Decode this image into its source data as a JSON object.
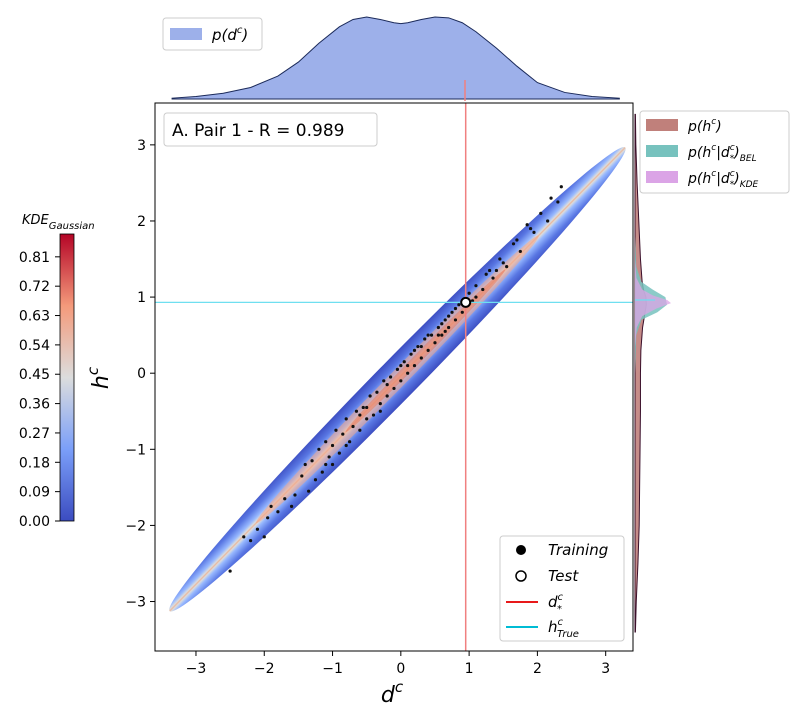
{
  "chart_data": {
    "type": "scatter",
    "title": "A. Pair 1 - R = 0.989",
    "correlation_R": 0.989,
    "xlabel": "d",
    "xlabel_sup": "c",
    "ylabel": "h",
    "ylabel_sup": "c",
    "xlim": [
      -3.6,
      3.4
    ],
    "ylim": [
      -3.65,
      3.55
    ],
    "xticks": [
      -3,
      -2,
      -1,
      0,
      1,
      2,
      3
    ],
    "yticks": [
      -3,
      -2,
      -1,
      0,
      1,
      2,
      3
    ],
    "grid": false,
    "colorbar": {
      "label": "KDE",
      "label_sub": "Gaussian",
      "colormap": "coolwarm",
      "ticks": [
        "0.00",
        "0.09",
        "0.18",
        "0.27",
        "0.36",
        "0.45",
        "0.54",
        "0.63",
        "0.72",
        "0.81"
      ],
      "max": 0.88
    },
    "test_point": {
      "x": 0.95,
      "y": 0.93
    },
    "d_star": 0.95,
    "h_true": 0.93,
    "kde_ellipse": {
      "center": [
        -0.05,
        -0.08
      ],
      "semi_major": 4.76,
      "semi_minor": 0.19,
      "angle_deg": 45.5
    },
    "legend_main": {
      "placement": "lower right",
      "items": [
        {
          "name": "Training",
          "marker": "filled-circle"
        },
        {
          "name": "Test",
          "marker": "open-circle"
        },
        {
          "name": "d",
          "sup": "c",
          "sub": "*",
          "color": "#e8191a",
          "marker": "line"
        },
        {
          "name": "h",
          "sup": "c",
          "sub": "True",
          "color": "#00bcd4",
          "marker": "line"
        }
      ]
    },
    "legend_top": {
      "placement": "upper left",
      "items": [
        {
          "name": "p(d",
          "sup": "c",
          "tail": ")",
          "color": "#9db0ea"
        }
      ]
    },
    "legend_right": {
      "placement": "upper right",
      "items": [
        {
          "name": "p(h",
          "sup": "c",
          "tail": ")",
          "color": "#c0807b"
        },
        {
          "name": "p(h",
          "sup": "c",
          "mid": "|d",
          "sub2": "*",
          "sup2": "c",
          "tail": ")",
          "sub": "BEL",
          "color": "#77c2be"
        },
        {
          "name": "p(h",
          "sup": "c",
          "mid": "|d",
          "sub2": "*",
          "sup2": "c",
          "tail": ")",
          "sub": "KDE",
          "color": "#dba4e6"
        }
      ]
    },
    "marginal_top": {
      "name": "p(d^c)",
      "color": "#9db0ea",
      "x": [
        -3.35,
        -3.0,
        -2.6,
        -2.2,
        -1.8,
        -1.5,
        -1.2,
        -0.9,
        -0.7,
        -0.5,
        -0.3,
        -0.1,
        0.0,
        0.1,
        0.3,
        0.5,
        0.7,
        0.9,
        1.1,
        1.4,
        1.7,
        2.0,
        2.4,
        2.8,
        3.2
      ],
      "density": [
        0.01,
        0.03,
        0.07,
        0.14,
        0.28,
        0.45,
        0.68,
        0.88,
        0.97,
        1.0,
        0.97,
        0.93,
        0.92,
        0.93,
        0.97,
        1.0,
        0.99,
        0.93,
        0.82,
        0.62,
        0.4,
        0.2,
        0.08,
        0.03,
        0.01
      ]
    },
    "marginal_right_prior": {
      "name": "p(h^c)",
      "color": "#c0807b",
      "y": [
        -3.4,
        -3.0,
        -2.5,
        -2.0,
        -1.5,
        -1.0,
        -0.5,
        0.0,
        0.3,
        0.6,
        0.8,
        0.9,
        1.0,
        1.1,
        1.2,
        1.5,
        2.0,
        2.5,
        3.0,
        3.4
      ],
      "density": [
        0.01,
        0.03,
        0.07,
        0.1,
        0.11,
        0.12,
        0.13,
        0.13,
        0.14,
        0.18,
        0.24,
        0.27,
        0.26,
        0.2,
        0.17,
        0.13,
        0.09,
        0.05,
        0.02,
        0.01
      ]
    },
    "marginal_right_bel": {
      "name": "p(h^c|d*^c)_BEL",
      "color": "#77c2be",
      "y": [
        0.0,
        0.5,
        0.7,
        0.8,
        0.9,
        1.0,
        1.1,
        1.2,
        1.4,
        1.8
      ],
      "density": [
        0.0,
        0.04,
        0.2,
        0.7,
        1.0,
        0.95,
        0.55,
        0.2,
        0.04,
        0.0
      ]
    },
    "marginal_right_kde": {
      "name": "p(h^c|d*^c)_KDE",
      "color": "#dba4e6",
      "y": [
        0.35,
        0.6,
        0.75,
        0.85,
        0.92,
        0.96,
        1.02,
        1.1,
        1.25,
        1.5
      ],
      "density": [
        0.0,
        0.05,
        0.2,
        0.6,
        1.0,
        0.9,
        0.5,
        0.2,
        0.04,
        0.0
      ]
    },
    "training_points": [
      [
        -2.5,
        -2.6
      ],
      [
        -2.3,
        -2.15
      ],
      [
        -2.1,
        -2.05
      ],
      [
        -1.95,
        -1.9
      ],
      [
        -1.8,
        -1.82
      ],
      [
        -1.7,
        -1.65
      ],
      [
        -1.55,
        -1.6
      ],
      [
        -1.45,
        -1.35
      ],
      [
        -1.35,
        -1.55
      ],
      [
        -1.3,
        -1.15
      ],
      [
        -1.2,
        -1.0
      ],
      [
        -1.15,
        -1.3
      ],
      [
        -1.1,
        -0.9
      ],
      [
        -1.05,
        -1.1
      ],
      [
        -1.0,
        -0.95
      ],
      [
        -0.95,
        -0.75
      ],
      [
        -0.9,
        -1.05
      ],
      [
        -0.85,
        -0.8
      ],
      [
        -0.8,
        -0.6
      ],
      [
        -0.75,
        -0.9
      ],
      [
        -0.7,
        -0.7
      ],
      [
        -0.65,
        -0.5
      ],
      [
        -0.6,
        -0.75
      ],
      [
        -0.55,
        -0.45
      ],
      [
        -0.5,
        -0.6
      ],
      [
        -0.45,
        -0.3
      ],
      [
        -0.4,
        -0.55
      ],
      [
        -0.35,
        -0.25
      ],
      [
        -0.3,
        -0.4
      ],
      [
        -0.25,
        -0.1
      ],
      [
        -0.2,
        -0.3
      ],
      [
        -0.15,
        -0.05
      ],
      [
        -0.1,
        -0.2
      ],
      [
        -0.05,
        0.05
      ],
      [
        0.0,
        -0.1
      ],
      [
        0.05,
        0.15
      ],
      [
        0.1,
        0.0
      ],
      [
        0.15,
        0.25
      ],
      [
        0.2,
        0.1
      ],
      [
        0.25,
        0.35
      ],
      [
        0.3,
        0.2
      ],
      [
        0.35,
        0.45
      ],
      [
        0.4,
        0.3
      ],
      [
        0.45,
        0.5
      ],
      [
        0.5,
        0.4
      ],
      [
        0.55,
        0.6
      ],
      [
        0.6,
        0.5
      ],
      [
        0.65,
        0.7
      ],
      [
        0.7,
        0.6
      ],
      [
        0.75,
        0.8
      ],
      [
        0.8,
        0.7
      ],
      [
        0.85,
        0.9
      ],
      [
        0.9,
        0.8
      ],
      [
        1.0,
        1.05
      ],
      [
        1.05,
        0.95
      ],
      [
        1.1,
        1.15
      ],
      [
        1.2,
        1.1
      ],
      [
        1.25,
        1.3
      ],
      [
        1.35,
        1.25
      ],
      [
        1.45,
        1.5
      ],
      [
        1.55,
        1.4
      ],
      [
        1.65,
        1.7
      ],
      [
        1.75,
        1.6
      ],
      [
        1.85,
        1.95
      ],
      [
        1.95,
        1.85
      ],
      [
        2.05,
        2.1
      ],
      [
        2.15,
        2.0
      ],
      [
        2.2,
        2.3
      ],
      [
        2.3,
        2.25
      ],
      [
        2.35,
        2.45
      ],
      [
        -2.0,
        -2.15
      ],
      [
        -1.6,
        -1.75
      ],
      [
        -1.4,
        -1.2
      ],
      [
        -1.25,
        -1.4
      ],
      [
        -1.0,
        -1.2
      ],
      [
        -0.8,
        -0.95
      ],
      [
        -0.6,
        -0.55
      ],
      [
        -0.3,
        -0.5
      ],
      [
        0.0,
        0.1
      ],
      [
        0.2,
        0.3
      ],
      [
        0.4,
        0.5
      ],
      [
        0.6,
        0.65
      ],
      [
        0.7,
        0.75
      ],
      [
        0.8,
        0.85
      ],
      [
        1.1,
        1.0
      ],
      [
        1.3,
        1.35
      ],
      [
        1.5,
        1.45
      ],
      [
        1.7,
        1.75
      ],
      [
        1.9,
        1.9
      ],
      [
        -1.9,
        -1.75
      ],
      [
        -1.1,
        -1.2
      ],
      [
        -0.5,
        -0.45
      ],
      [
        0.3,
        0.35
      ],
      [
        0.55,
        0.5
      ],
      [
        0.9,
        0.95
      ],
      [
        1.4,
        1.35
      ],
      [
        -2.2,
        -2.2
      ],
      [
        -0.2,
        -0.15
      ],
      [
        0.1,
        0.1
      ],
      [
        0.65,
        0.55
      ]
    ]
  }
}
